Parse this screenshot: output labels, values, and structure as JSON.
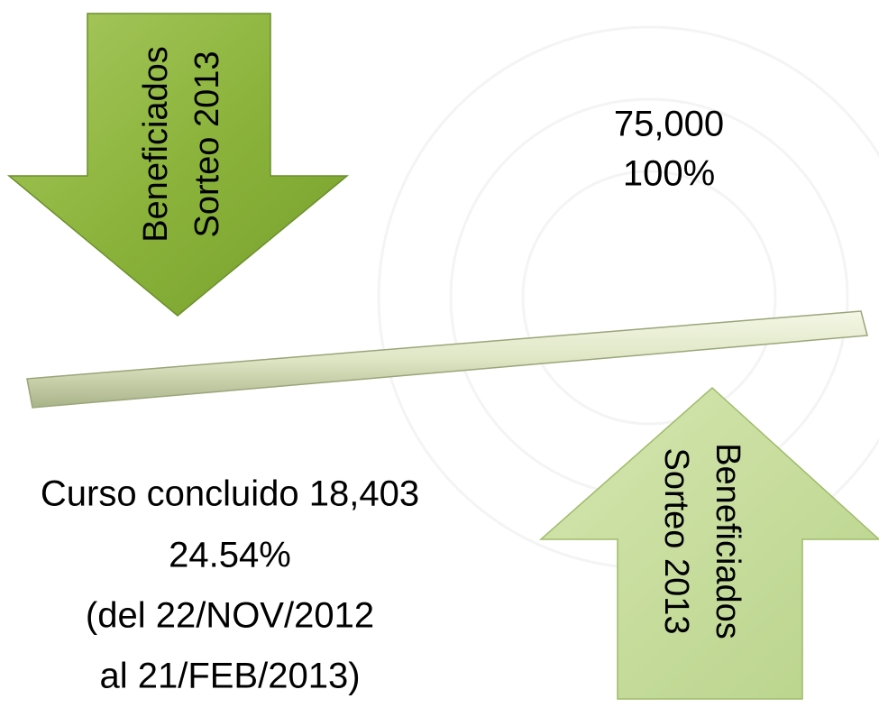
{
  "arrow_down": {
    "lines": [
      "Beneficiados",
      "Sorteo 2013"
    ]
  },
  "goal": {
    "total": "75,000",
    "percent": "100%"
  },
  "arrow_up": {
    "lines": [
      "Beneficiados",
      "Sorteo 2013"
    ]
  },
  "progress": {
    "lines": [
      "Curso concluido 18,403",
      "24.54%",
      "(del 22/NOV/2012",
      "al 21/FEB/2013)"
    ]
  }
}
